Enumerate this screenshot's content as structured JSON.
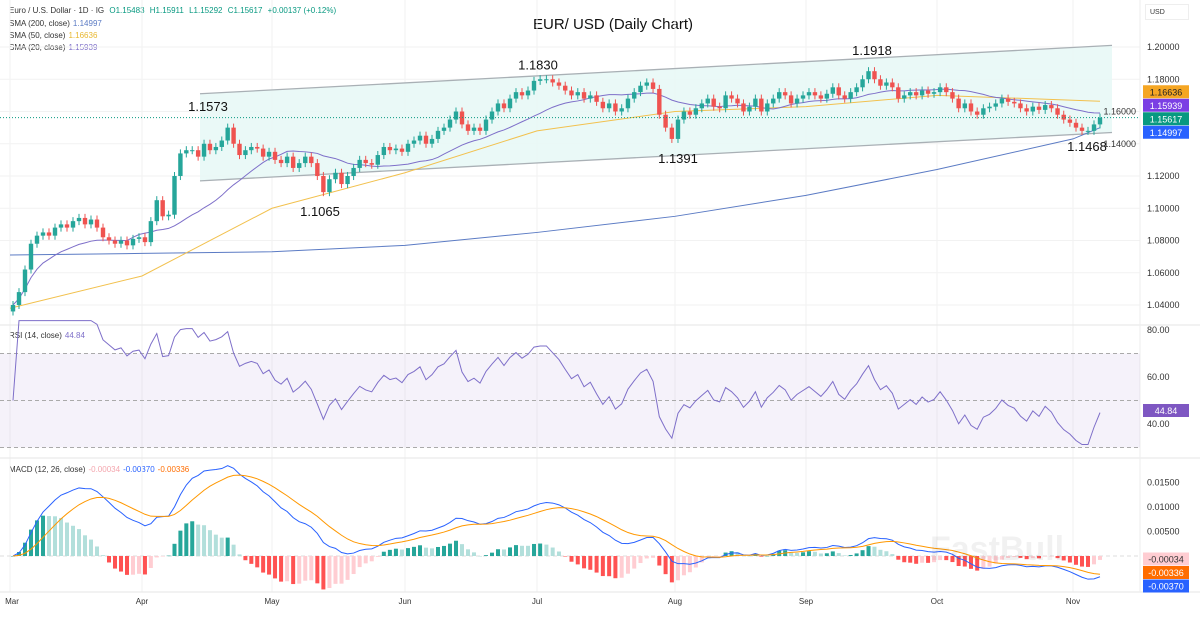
{
  "header": {
    "symbol": "Euro / U.S. Dollar · 1D · IG",
    "open": "O1.15483",
    "high": "H1.15911",
    "low": "L1.15292",
    "close": "C1.15617",
    "change": "+0.00137 (+0.12%)",
    "sma200_label": "SMA (200, close)",
    "sma200_value": "1.14997",
    "sma50_label": "SMA (50, close)",
    "sma50_value": "1.16636",
    "sma20_label": "SMA (20, close)",
    "sma20_value": "1.15939",
    "currency": "USD"
  },
  "rsi_legend": {
    "label": "RSI (14, close)",
    "value": "44.84"
  },
  "macd_legend": {
    "label": "MACD (12, 26, close)",
    "hist": "-0.00034",
    "macd": "-0.00370",
    "signal": "-0.00336"
  },
  "watermark": "FastBull",
  "colors": {
    "up": "#26a69a",
    "down": "#ef5350",
    "sma200": "#5b7bc4",
    "sma50": "#f2c14e",
    "sma20": "#7e6fc9",
    "channel_fill": "#e8f8f6",
    "rsi": "#7e6fc9",
    "macd": "#2962ff",
    "signal": "#ff9800",
    "badge_sma50": "#f5a623",
    "badge_sma20": "#7b3fe4",
    "badge_close": "#089981",
    "badge_sma200": "#2962ff",
    "badge_rsi": "#7e57c2",
    "badge_hist": "#ffcdd2",
    "badge_signal": "#ff6d00",
    "badge_macd": "#2962ff"
  },
  "chart_data": {
    "type": "candlestick",
    "title": "EUR/ USD (Daily Chart)",
    "x_tick_labels": [
      "Mar",
      "Apr",
      "May",
      "Jun",
      "Jul",
      "Aug",
      "Sep",
      "Oct",
      "Nov"
    ],
    "price_ticks": [
      "1.20000",
      "1.18000",
      "1.16000",
      "1.14000",
      "1.12000",
      "1.10000",
      "1.08000",
      "1.06000",
      "1.04000"
    ],
    "price_ylim": [
      1.035,
      1.205
    ],
    "closes_by_month": {
      "Mar": [
        1.04,
        1.048,
        1.062,
        1.078,
        1.083,
        1.085,
        1.083,
        1.088,
        1.09,
        1.088,
        1.092,
        1.094,
        1.09,
        1.093,
        1.088,
        1.082,
        1.08,
        1.078,
        1.08,
        1.077,
        1.081,
        1.082
      ],
      "Apr": [
        1.079,
        1.092,
        1.105,
        1.095,
        1.096,
        1.12,
        1.134,
        1.136,
        1.136,
        1.132,
        1.14,
        1.136,
        1.138,
        1.142,
        1.15,
        1.14,
        1.133,
        1.136,
        1.138,
        1.137,
        1.132,
        1.135
      ],
      "May": [
        1.13,
        1.128,
        1.132,
        1.125,
        1.128,
        1.132,
        1.128,
        1.12,
        1.11,
        1.118,
        1.122,
        1.115,
        1.12,
        1.125,
        1.13,
        1.128,
        1.127,
        1.133,
        1.138,
        1.136,
        1.137,
        1.135
      ],
      "Jun": [
        1.14,
        1.142,
        1.145,
        1.14,
        1.143,
        1.148,
        1.15,
        1.155,
        1.16,
        1.152,
        1.148,
        1.15,
        1.148,
        1.155,
        1.16,
        1.165,
        1.162,
        1.168,
        1.172,
        1.17,
        1.173,
        1.179
      ],
      "Jul": [
        1.18,
        1.18,
        1.178,
        1.176,
        1.173,
        1.17,
        1.172,
        1.168,
        1.17,
        1.166,
        1.162,
        1.165,
        1.16,
        1.162,
        1.168,
        1.172,
        1.176,
        1.178,
        1.174,
        1.158,
        1.15,
        1.143
      ],
      "Aug": [
        1.155,
        1.16,
        1.158,
        1.162,
        1.165,
        1.168,
        1.163,
        1.162,
        1.17,
        1.168,
        1.165,
        1.16,
        1.163,
        1.168,
        1.16,
        1.165,
        1.168,
        1.172,
        1.17,
        1.165,
        1.168,
        1.17
      ],
      "Sep": [
        1.172,
        1.17,
        1.168,
        1.171,
        1.175,
        1.17,
        1.168,
        1.172,
        1.175,
        1.18,
        1.185,
        1.18,
        1.176,
        1.178,
        1.175,
        1.168,
        1.17,
        1.172,
        1.17,
        1.173,
        1.171,
        1.172
      ],
      "Oct": [
        1.175,
        1.172,
        1.168,
        1.162,
        1.165,
        1.16,
        1.158,
        1.162,
        1.163,
        1.165,
        1.168,
        1.166,
        1.165,
        1.162,
        1.16,
        1.163,
        1.161,
        1.164,
        1.162,
        1.158,
        1.155,
        1.153
      ],
      "Nov": [
        1.15,
        1.148,
        1.148,
        1.152,
        1.15617
      ]
    },
    "sma200_by_month": {
      "Mar": 1.071,
      "Apr": 1.072,
      "May": 1.073,
      "Jun": 1.077,
      "Jul": 1.085,
      "Aug": 1.095,
      "Sep": 1.108,
      "Oct": 1.124,
      "Nov": 1.143,
      "last": 1.14997
    },
    "sma50_by_month": {
      "Mar": 1.038,
      "Apr": 1.058,
      "May": 1.1,
      "Jun": 1.122,
      "Jul": 1.148,
      "Aug": 1.16,
      "Sep": 1.163,
      "Oct": 1.17,
      "Nov": 1.167,
      "last": 1.16636
    },
    "channel": {
      "upper": [
        {
          "month": "Apr",
          "price": 1.171
        },
        {
          "month": "Nov",
          "price": 1.201
        }
      ],
      "lower": [
        {
          "month": "Apr",
          "price": 1.117
        },
        {
          "month": "Nov",
          "price": 1.147
        }
      ]
    },
    "annotations": [
      {
        "text": "1.1573",
        "month": "Apr",
        "price": 1.1573
      },
      {
        "text": "1.1830",
        "month": "Jul",
        "price": 1.183
      },
      {
        "text": "1.1918",
        "month": "Sep",
        "price": 1.1918
      },
      {
        "text": "1.1065",
        "month": "May",
        "price": 1.1065
      },
      {
        "text": "1.1391",
        "month": "Aug",
        "price": 1.1391
      },
      {
        "text": "1.1468",
        "month": "Nov",
        "price": 1.1468
      }
    ],
    "last_values": {
      "sma50": "1.16636",
      "sma20": "1.15939",
      "close": "1.15617",
      "sma200": "1.14997"
    },
    "rsi": {
      "period": 14,
      "ticks": [
        "80.00",
        "60.00",
        "40.00"
      ],
      "ylim": [
        20,
        85
      ],
      "bands": [
        70,
        50,
        30
      ],
      "last": "44.84"
    },
    "macd": {
      "fast": 12,
      "slow": 26,
      "ticks": [
        "0.01500",
        "0.01000",
        "0.00500"
      ],
      "last_hist": "-0.00034",
      "last_signal": "-0.00336",
      "last_macd": "-0.00370"
    }
  }
}
